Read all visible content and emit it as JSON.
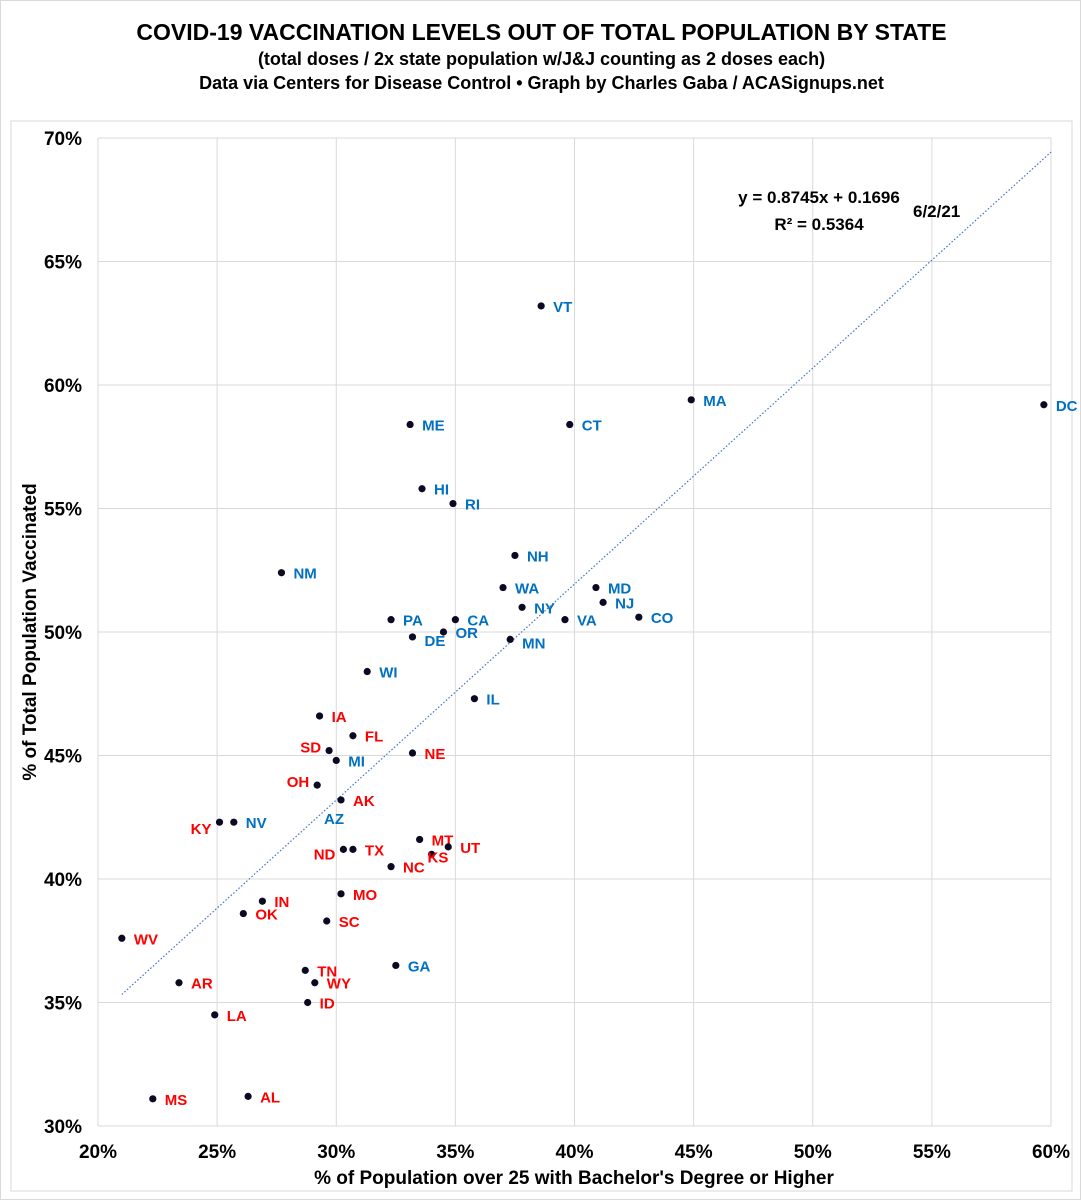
{
  "chart_data": {
    "type": "scatter",
    "title": "COVID-19 VACCINATION LEVELS OUT OF TOTAL POPULATION BY STATE",
    "subtitle": "(total doses / 2x state population w/J&J counting as 2 doses each)",
    "credit": "Data via Centers for Disease Control • Graph by Charles Gaba / ACASignups.net",
    "xlabel": "% of Population over 25 with Bachelor's Degree or Higher",
    "ylabel": "% of Total Population Vaccinated",
    "xlim": [
      20,
      60
    ],
    "ylim": [
      30,
      70
    ],
    "xticks": [
      "20%",
      "25%",
      "30%",
      "35%",
      "40%",
      "45%",
      "50%",
      "55%",
      "60%"
    ],
    "yticks": [
      "30%",
      "35%",
      "40%",
      "45%",
      "50%",
      "55%",
      "60%",
      "65%",
      "70%"
    ],
    "grid": true,
    "trendline": {
      "type": "linear",
      "slope": 0.8745,
      "intercept": 0.1696,
      "equation": "y = 0.8745x + 0.1696",
      "r2": "R² = 0.5364",
      "x_range": [
        21,
        60
      ]
    },
    "date": "6/2/21",
    "colors": {
      "blue": "#0070C0",
      "red": "#FF0000",
      "point": "#0a0a23",
      "trend": "#4472C4"
    },
    "points": [
      {
        "state": "VT",
        "x": 38.6,
        "y": 63.2,
        "color": "blue"
      },
      {
        "state": "MA",
        "x": 44.9,
        "y": 59.4,
        "color": "blue"
      },
      {
        "state": "DC",
        "x": 59.7,
        "y": 59.2,
        "color": "blue"
      },
      {
        "state": "ME",
        "x": 33.1,
        "y": 58.4,
        "color": "blue"
      },
      {
        "state": "CT",
        "x": 39.8,
        "y": 58.4,
        "color": "blue"
      },
      {
        "state": "HI",
        "x": 33.6,
        "y": 55.8,
        "color": "blue"
      },
      {
        "state": "RI",
        "x": 34.9,
        "y": 55.2,
        "color": "blue"
      },
      {
        "state": "NM",
        "x": 27.7,
        "y": 52.4,
        "color": "blue"
      },
      {
        "state": "NH",
        "x": 37.5,
        "y": 53.1,
        "color": "blue"
      },
      {
        "state": "WA",
        "x": 37.0,
        "y": 51.8,
        "color": "blue"
      },
      {
        "state": "MD",
        "x": 40.9,
        "y": 51.8,
        "color": "blue"
      },
      {
        "state": "NJ",
        "x": 41.2,
        "y": 51.2,
        "color": "blue"
      },
      {
        "state": "NY",
        "x": 37.8,
        "y": 51.0,
        "color": "blue"
      },
      {
        "state": "VA",
        "x": 39.6,
        "y": 50.5,
        "color": "blue"
      },
      {
        "state": "CO",
        "x": 42.7,
        "y": 50.6,
        "color": "blue"
      },
      {
        "state": "PA",
        "x": 32.3,
        "y": 50.5,
        "color": "blue"
      },
      {
        "state": "CA",
        "x": 35.0,
        "y": 50.5,
        "color": "blue"
      },
      {
        "state": "OR",
        "x": 34.5,
        "y": 50.0,
        "color": "blue"
      },
      {
        "state": "DE",
        "x": 33.2,
        "y": 49.8,
        "color": "blue"
      },
      {
        "state": "MN",
        "x": 37.3,
        "y": 49.7,
        "color": "blue"
      },
      {
        "state": "WI",
        "x": 31.3,
        "y": 48.4,
        "color": "blue"
      },
      {
        "state": "IL",
        "x": 35.8,
        "y": 47.3,
        "color": "blue"
      },
      {
        "state": "IA",
        "x": 29.3,
        "y": 46.6,
        "color": "red"
      },
      {
        "state": "FL",
        "x": 30.7,
        "y": 45.8,
        "color": "red"
      },
      {
        "state": "SD",
        "x": 29.7,
        "y": 45.2,
        "color": "red"
      },
      {
        "state": "MI",
        "x": 30.0,
        "y": 44.8,
        "color": "blue"
      },
      {
        "state": "NE",
        "x": 33.2,
        "y": 45.1,
        "color": "red"
      },
      {
        "state": "OH",
        "x": 29.2,
        "y": 43.8,
        "color": "red"
      },
      {
        "state": "AK",
        "x": 30.2,
        "y": 43.2,
        "color": "red"
      },
      {
        "state": "AZ",
        "x": 30.2,
        "y": 43.2,
        "color": "blue"
      },
      {
        "state": "KY",
        "x": 25.1,
        "y": 42.3,
        "color": "red"
      },
      {
        "state": "NV",
        "x": 25.7,
        "y": 42.3,
        "color": "blue"
      },
      {
        "state": "MT",
        "x": 33.5,
        "y": 41.6,
        "color": "red"
      },
      {
        "state": "UT",
        "x": 34.7,
        "y": 41.3,
        "color": "red"
      },
      {
        "state": "KS",
        "x": 34.0,
        "y": 41.0,
        "color": "red"
      },
      {
        "state": "ND",
        "x": 30.3,
        "y": 41.2,
        "color": "red"
      },
      {
        "state": "TX",
        "x": 30.7,
        "y": 41.2,
        "color": "red"
      },
      {
        "state": "NC",
        "x": 32.3,
        "y": 40.5,
        "color": "red"
      },
      {
        "state": "MO",
        "x": 30.2,
        "y": 39.4,
        "color": "red"
      },
      {
        "state": "IN",
        "x": 26.9,
        "y": 39.1,
        "color": "red"
      },
      {
        "state": "OK",
        "x": 26.1,
        "y": 38.6,
        "color": "red"
      },
      {
        "state": "SC",
        "x": 29.6,
        "y": 38.3,
        "color": "red"
      },
      {
        "state": "WV",
        "x": 21.0,
        "y": 37.6,
        "color": "red"
      },
      {
        "state": "GA",
        "x": 32.5,
        "y": 36.5,
        "color": "blue"
      },
      {
        "state": "TN",
        "x": 28.7,
        "y": 36.3,
        "color": "red"
      },
      {
        "state": "AR",
        "x": 23.4,
        "y": 35.8,
        "color": "red"
      },
      {
        "state": "WY",
        "x": 29.1,
        "y": 35.8,
        "color": "red"
      },
      {
        "state": "ID",
        "x": 28.8,
        "y": 35.0,
        "color": "red"
      },
      {
        "state": "LA",
        "x": 24.9,
        "y": 34.5,
        "color": "red"
      },
      {
        "state": "MS",
        "x": 22.3,
        "y": 31.1,
        "color": "red"
      },
      {
        "state": "AL",
        "x": 26.3,
        "y": 31.2,
        "color": "red"
      }
    ]
  }
}
